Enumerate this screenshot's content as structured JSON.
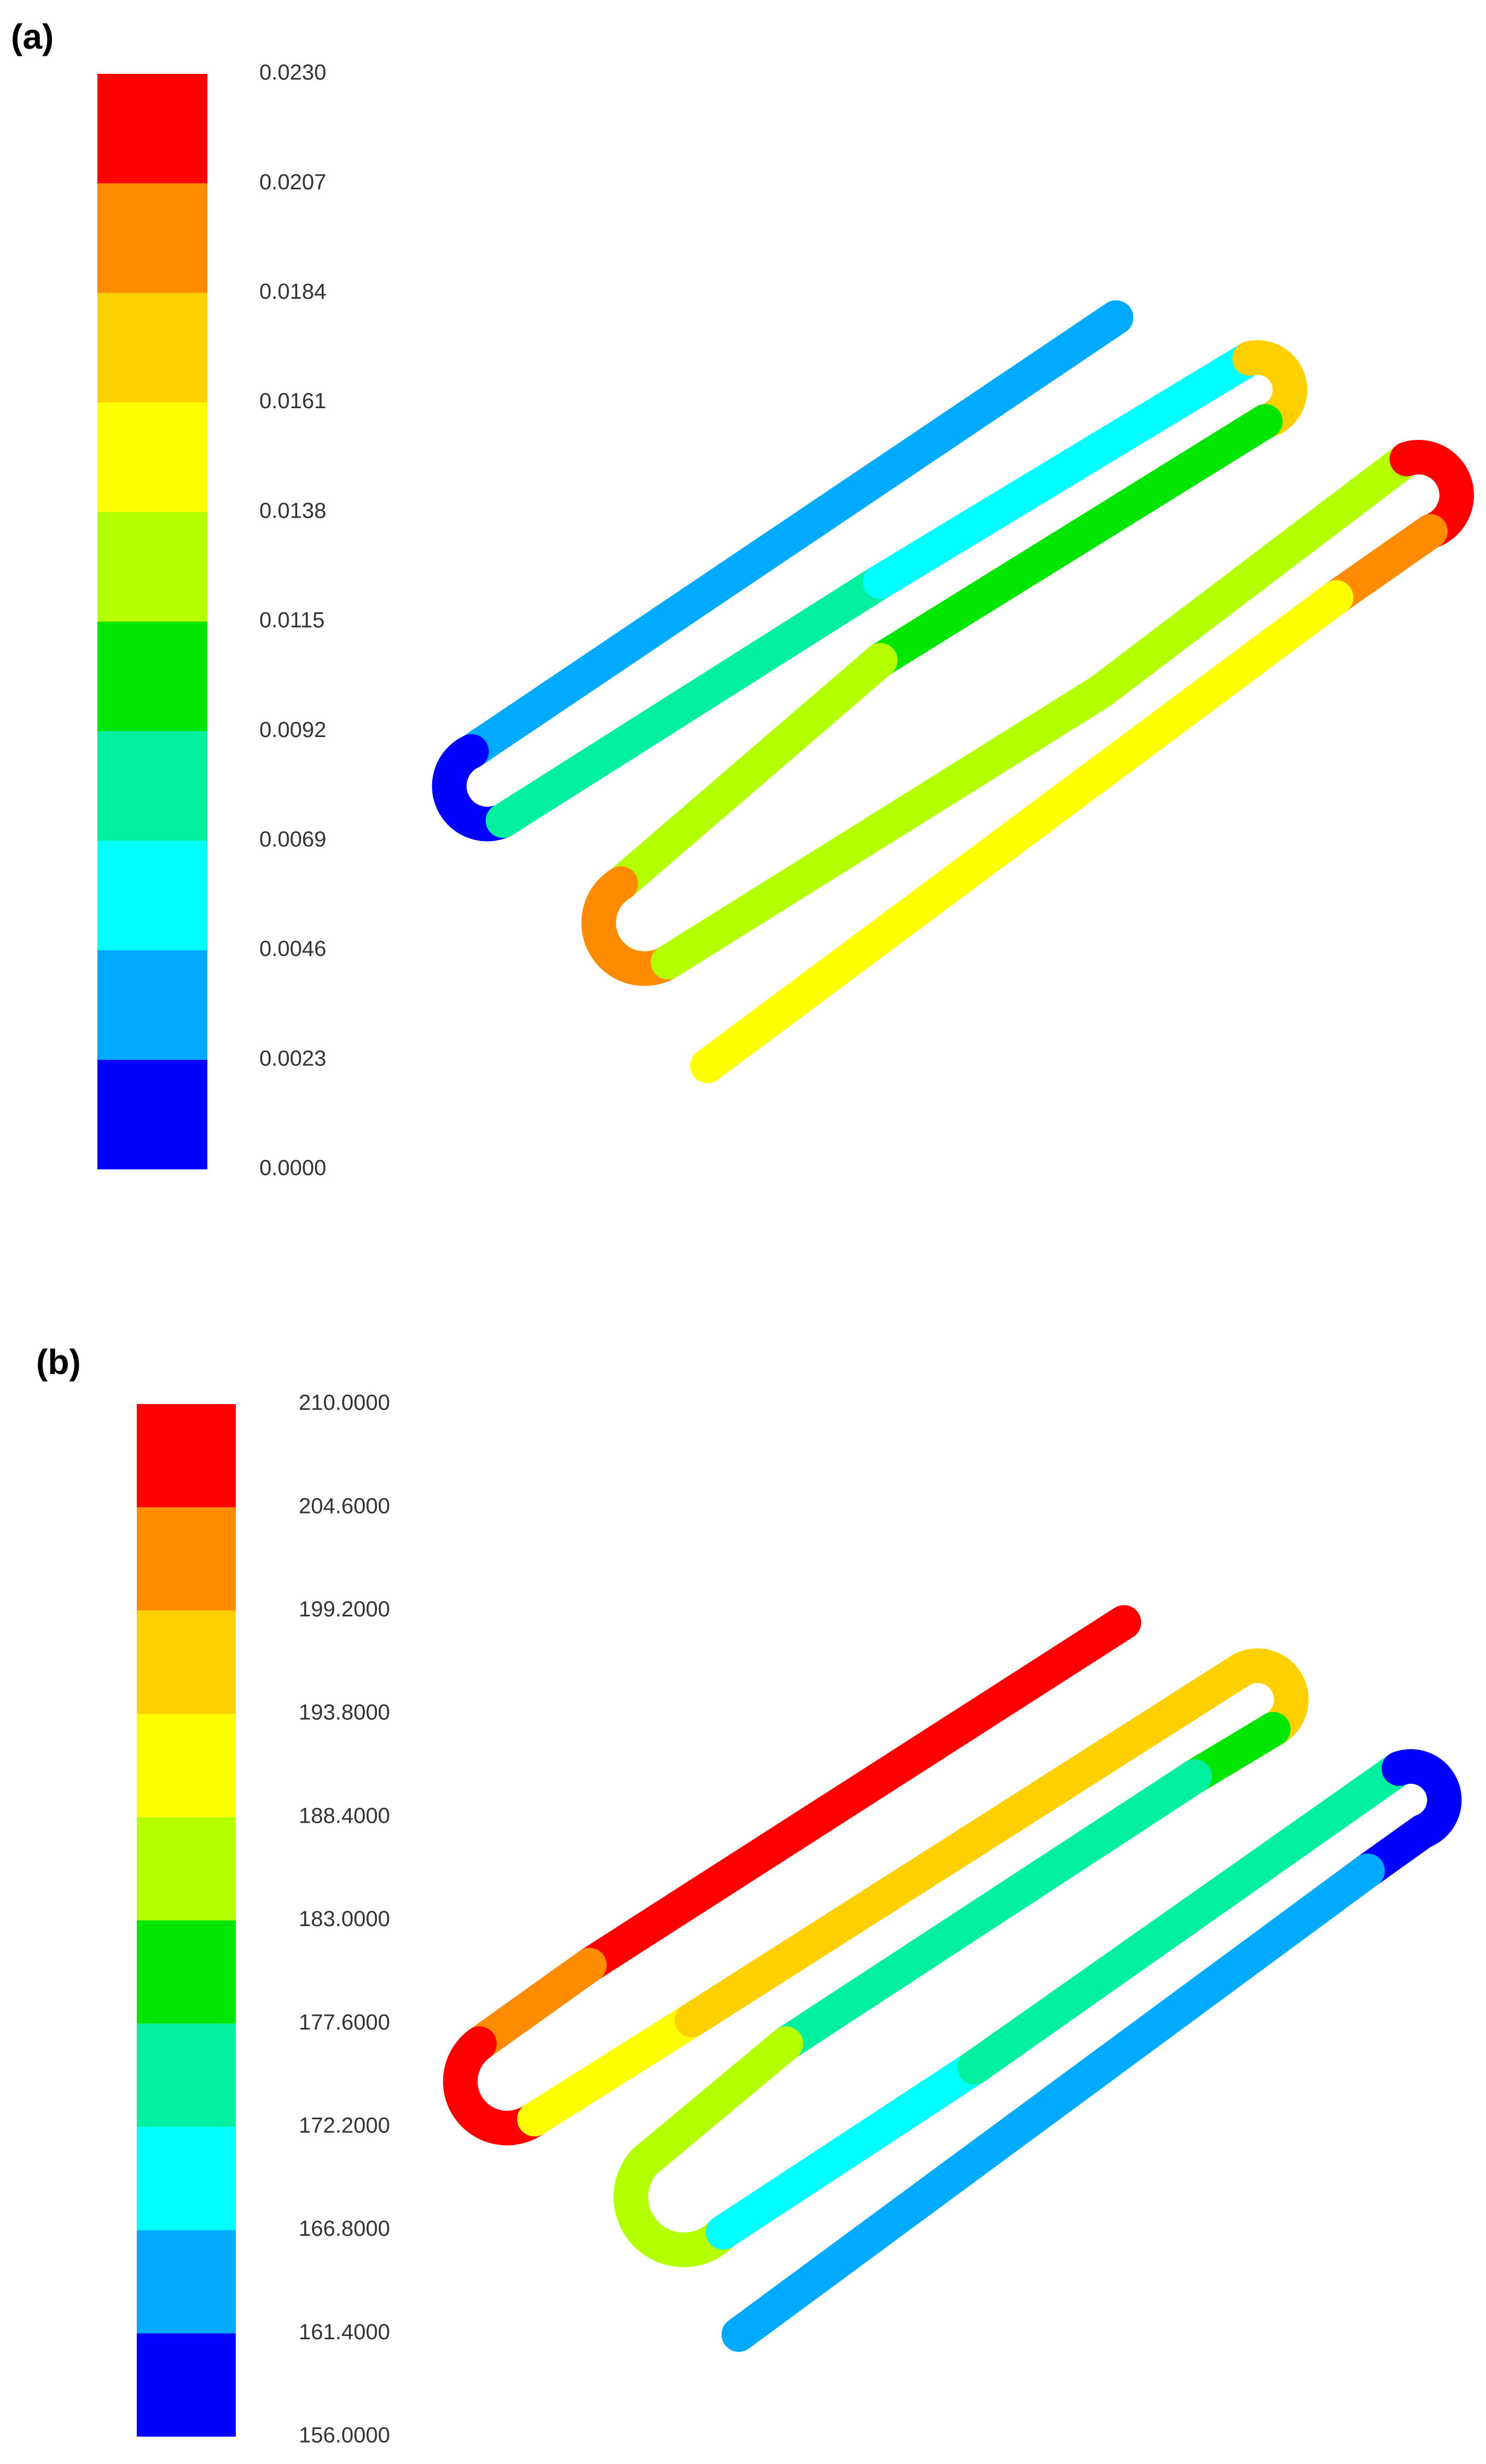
{
  "chart_data": [
    {
      "type": "colorbar",
      "panel_label": "(a)",
      "colors": [
        "#ff0000",
        "#ff8c00",
        "#ffd000",
        "#ffff00",
        "#b4ff00",
        "#00e600",
        "#00f0a0",
        "#00ffff",
        "#00aaff",
        "#0000ff"
      ],
      "ylim": [
        0,
        0.023
      ],
      "yticks": [
        {
          "value": 0.023,
          "label": "0.0230"
        },
        {
          "value": 0.0207,
          "label": "0.0207"
        },
        {
          "value": 0.0184,
          "label": "0.0184"
        },
        {
          "value": 0.0161,
          "label": "0.0161"
        },
        {
          "value": 0.0138,
          "label": "0.0138"
        },
        {
          "value": 0.0115,
          "label": "0.0115"
        },
        {
          "value": 0.0092,
          "label": "0.0092"
        },
        {
          "value": 0.0069,
          "label": "0.0069"
        },
        {
          "value": 0.0046,
          "label": "0.0046"
        },
        {
          "value": 0.0023,
          "label": "0.0023"
        },
        {
          "value": 0,
          "label": "0.0000"
        }
      ]
    },
    {
      "type": "colorbar",
      "panel_label": "(b)",
      "colors": [
        "#ff0000",
        "#ff8c00",
        "#ffd000",
        "#ffff00",
        "#b4ff00",
        "#00e600",
        "#00f0a0",
        "#00ffff",
        "#00aaff",
        "#0000ff"
      ],
      "ylim": [
        156,
        210
      ],
      "yticks": [
        {
          "value": 210,
          "label": "210.0000"
        },
        {
          "value": 204.6,
          "label": "204.6000"
        },
        {
          "value": 199.2,
          "label": "199.2000"
        },
        {
          "value": 193.8,
          "label": "193.8000"
        },
        {
          "value": 188.4,
          "label": "188.4000"
        },
        {
          "value": 183,
          "label": "183.0000"
        },
        {
          "value": 177.6,
          "label": "177.6000"
        },
        {
          "value": 172.2,
          "label": "172.2000"
        },
        {
          "value": 166.8,
          "label": "166.8000"
        },
        {
          "value": 161.4,
          "label": "161.4000"
        },
        {
          "value": 156,
          "label": "156.0000"
        }
      ]
    }
  ]
}
